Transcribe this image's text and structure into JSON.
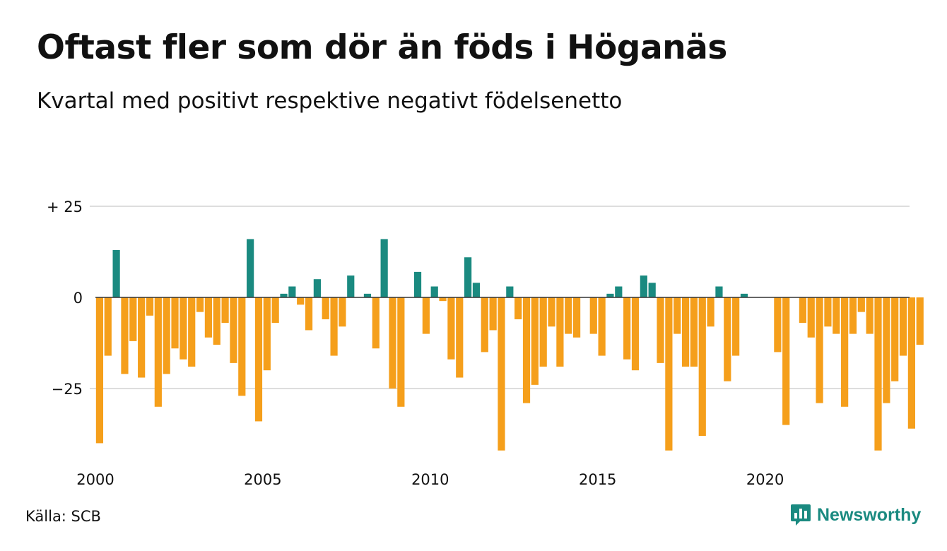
{
  "title": "Oftast fler som dör än föds i Höganäs",
  "subtitle": "Kvartal med positivt respektive negativt födelsenetto",
  "source": "Källa: SCB",
  "brand": {
    "name": "Newsworthy",
    "icon": "newsworthy-chart-bubble-icon"
  },
  "colors": {
    "positive": "#1a8a80",
    "negative": "#f59f1b",
    "grid": "#dddddd",
    "text": "#111111"
  },
  "chart_data": {
    "type": "bar",
    "title": "Oftast fler som dör än föds i Höganäs",
    "subtitle": "Kvartal med positivt respektive negativt födelsenetto",
    "x_start": 2000,
    "periods_per_year": 4,
    "x_ticks": [
      2000,
      2005,
      2010,
      2015,
      2020
    ],
    "y_ticks": [
      {
        "value": 25,
        "label": "+ 25"
      },
      {
        "value": 0,
        "label": "0"
      },
      {
        "value": -25,
        "label": "−25"
      }
    ],
    "ylim": [
      -43,
      27
    ],
    "grid": true,
    "values": [
      -40,
      -16,
      13,
      -21,
      -12,
      -22,
      -5,
      -30,
      -21,
      -14,
      -17,
      -19,
      -4,
      -11,
      -13,
      -7,
      -18,
      -27,
      16,
      -34,
      -20,
      -7,
      1,
      3,
      -2,
      -9,
      5,
      -6,
      -16,
      -8,
      6,
      0,
      1,
      -14,
      16,
      -25,
      -30,
      0,
      7,
      -10,
      3,
      -1,
      -17,
      -22,
      11,
      4,
      -15,
      -9,
      -42,
      3,
      -6,
      -29,
      -24,
      -19,
      -8,
      -19,
      -10,
      -11,
      0,
      -10,
      -16,
      1,
      3,
      -17,
      -20,
      6,
      4,
      -18,
      -42,
      -10,
      -19,
      -19,
      -38,
      -8,
      3,
      -23,
      -16,
      1,
      0,
      0,
      0,
      -15,
      -35,
      0,
      -7,
      -11,
      -29,
      -8,
      -10,
      -30,
      -10,
      -4,
      -10,
      -42,
      -29,
      -23,
      -16,
      -36,
      -13
    ]
  }
}
